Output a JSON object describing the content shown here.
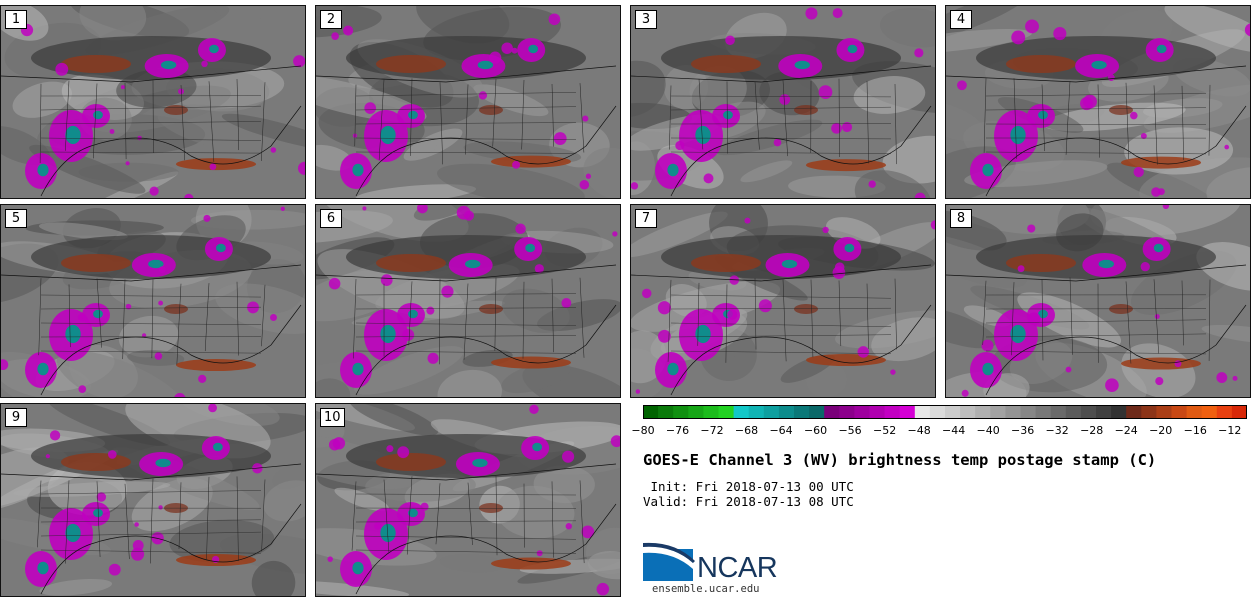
{
  "panels": [
    {
      "label": "1"
    },
    {
      "label": "2"
    },
    {
      "label": "3"
    },
    {
      "label": "4"
    },
    {
      "label": "5"
    },
    {
      "label": "6"
    },
    {
      "label": "7"
    },
    {
      "label": "8"
    },
    {
      "label": "9"
    },
    {
      "label": "10"
    }
  ],
  "colorbar": {
    "ticks": [
      "−80",
      "−76",
      "−72",
      "−68",
      "−64",
      "−60",
      "−56",
      "−52",
      "−48",
      "−44",
      "−40",
      "−36",
      "−32",
      "−28",
      "−24",
      "−20",
      "−16",
      "−12"
    ],
    "min": -80,
    "max": -10,
    "colors": [
      "#006400",
      "#0a7a0a",
      "#109010",
      "#16a616",
      "#1cbc1c",
      "#22d222",
      "#12c8c8",
      "#10b4b4",
      "#0ea0a0",
      "#0c8c8c",
      "#0a7878",
      "#0a6868",
      "#7a007a",
      "#8c008c",
      "#9e009e",
      "#b000b0",
      "#c200c2",
      "#d400d4",
      "#e8e8e8",
      "#dadada",
      "#cccccc",
      "#bebebe",
      "#b0b0b0",
      "#a2a2a2",
      "#949494",
      "#868686",
      "#787878",
      "#6a6a6a",
      "#5c5c5c",
      "#4e4e4e",
      "#404040",
      "#323232",
      "#6e2a1a",
      "#8c3418",
      "#aa3e16",
      "#c84814",
      "#e05a12",
      "#f06010",
      "#e84010",
      "#d82808"
    ]
  },
  "title": "GOES-E Channel 3 (WV) brightness temp postage stamp (C)",
  "init": " Init: Fri 2018-07-13 00 UTC",
  "valid": "Valid: Fri 2018-07-13 08 UTC",
  "logo": {
    "text": "NCAR",
    "url": "ensemble.ucar.edu"
  }
}
